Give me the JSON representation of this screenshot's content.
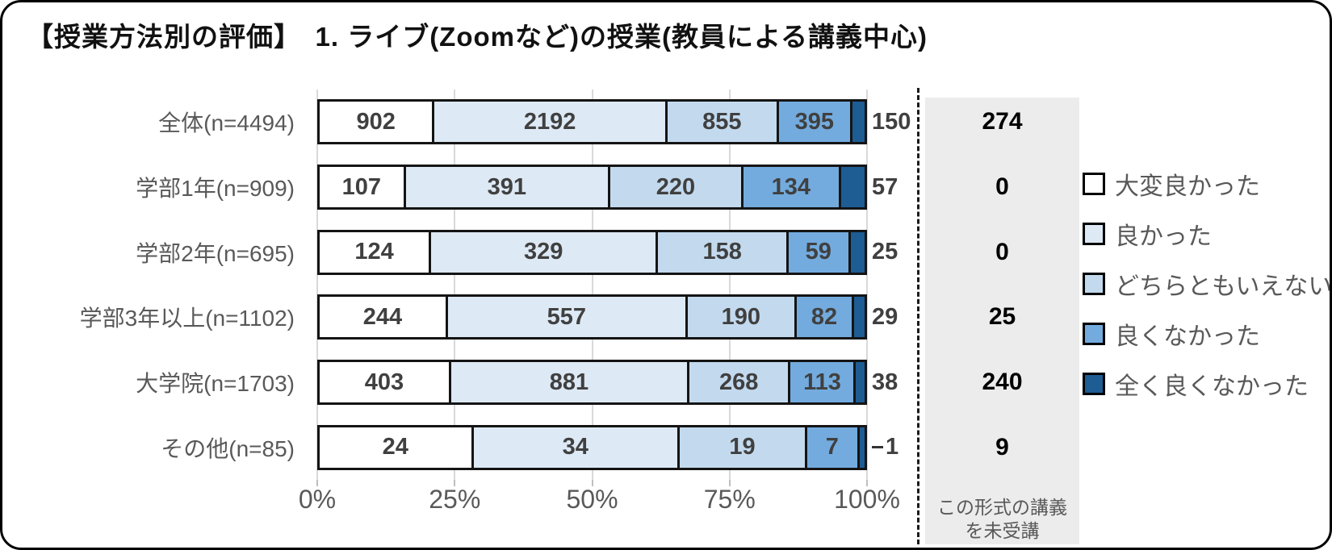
{
  "title": "【授業方法別の評価】　1. ライブ(Zoomなど)の授業(教員による講義中心)",
  "chart_data": {
    "type": "bar",
    "subtype": "stacked-100-percent",
    "orientation": "horizontal",
    "title": "【授業方法別の評価】　1. ライブ(Zoomなど)の授業(教員による講義中心)",
    "categories": [
      "全体(n=4494)",
      "学部1年(n=909)",
      "学部2年(n=695)",
      "学部3年以上(n=1102)",
      "大学院(n=1703)",
      "その他(n=85)"
    ],
    "series": [
      {
        "name": "大変良かった",
        "color": "#ffffff",
        "values": [
          902,
          107,
          124,
          244,
          403,
          24
        ]
      },
      {
        "name": "良かった",
        "color": "#dde9f5",
        "values": [
          2192,
          391,
          329,
          557,
          881,
          34
        ]
      },
      {
        "name": "どちらともいえない",
        "color": "#c3daee",
        "values": [
          855,
          220,
          158,
          190,
          268,
          19
        ]
      },
      {
        "name": "良くなかった",
        "color": "#73abde",
        "values": [
          395,
          134,
          59,
          82,
          113,
          7
        ]
      },
      {
        "name": "全く良くなかった",
        "color": "#1e5c94",
        "values": [
          150,
          57,
          25,
          29,
          38,
          1
        ]
      }
    ],
    "not_attended": {
      "caption_lines": [
        "この形式の講義",
        "を未受講"
      ],
      "values": [
        274,
        0,
        0,
        25,
        240,
        9
      ]
    },
    "x_axis": {
      "ticks": [
        "0%",
        "25%",
        "50%",
        "75%",
        "100%"
      ],
      "range_percent": [
        0,
        100
      ],
      "grid": true
    },
    "legend_position": "right"
  },
  "colors": {
    "grid_line": "#d9d9d9",
    "bar_border": "#141414",
    "label_gray": "#595959",
    "value_dark": "#404040",
    "na_panel_bg": "#ececec"
  }
}
